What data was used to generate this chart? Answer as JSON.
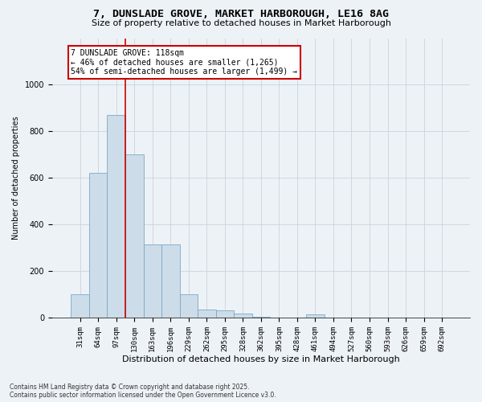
{
  "title": "7, DUNSLADE GROVE, MARKET HARBOROUGH, LE16 8AG",
  "subtitle": "Size of property relative to detached houses in Market Harborough",
  "xlabel": "Distribution of detached houses by size in Market Harborough",
  "ylabel": "Number of detached properties",
  "categories": [
    "31sqm",
    "64sqm",
    "97sqm",
    "130sqm",
    "163sqm",
    "196sqm",
    "229sqm",
    "262sqm",
    "295sqm",
    "328sqm",
    "362sqm",
    "395sqm",
    "428sqm",
    "461sqm",
    "494sqm",
    "527sqm",
    "560sqm",
    "593sqm",
    "626sqm",
    "659sqm",
    "692sqm"
  ],
  "values": [
    100,
    620,
    870,
    700,
    315,
    315,
    100,
    35,
    30,
    18,
    5,
    0,
    0,
    12,
    0,
    0,
    0,
    0,
    0,
    0,
    0
  ],
  "bar_color": "#ccdce8",
  "bar_edge_color": "#7aaac8",
  "vline_index": 2.5,
  "vline_color": "#cc0000",
  "annotation_line1": "7 DUNSLADE GROVE: 118sqm",
  "annotation_line2": "← 46% of detached houses are smaller (1,265)",
  "annotation_line3": "54% of semi-detached houses are larger (1,499) →",
  "ylim": [
    0,
    1200
  ],
  "yticks": [
    0,
    200,
    400,
    600,
    800,
    1000
  ],
  "grid_color": "#c8d4de",
  "bg_color": "#edf2f7",
  "footer": "Contains HM Land Registry data © Crown copyright and database right 2025.\nContains public sector information licensed under the Open Government Licence v3.0.",
  "title_fontsize": 9.5,
  "subtitle_fontsize": 8,
  "xlabel_fontsize": 8,
  "ylabel_fontsize": 7,
  "tick_fontsize": 6.5,
  "annot_fontsize": 7,
  "footer_fontsize": 5.5
}
